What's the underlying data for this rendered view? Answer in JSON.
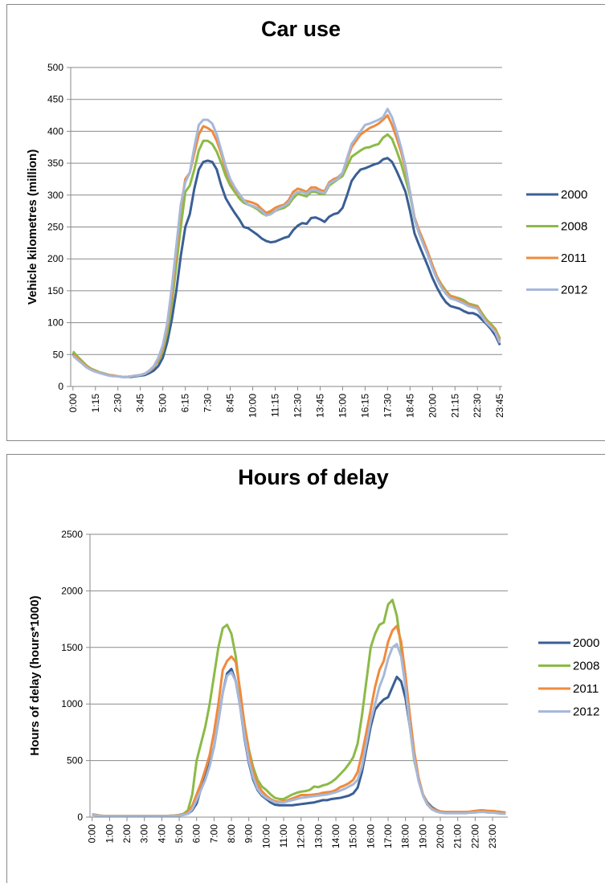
{
  "chart_data": [
    {
      "type": "line",
      "title": "Car use",
      "y_label": "Vehicle kilometres (million)",
      "categories": [
        "0:00",
        null,
        null,
        null,
        null,
        "1:15",
        null,
        null,
        null,
        null,
        "2:30",
        null,
        null,
        null,
        null,
        "3:45",
        null,
        null,
        null,
        null,
        "5:00",
        null,
        null,
        null,
        null,
        "6:15",
        null,
        null,
        null,
        null,
        "7:30",
        null,
        null,
        null,
        null,
        "8:45",
        null,
        null,
        null,
        null,
        "10:00",
        null,
        null,
        null,
        null,
        "11:15",
        null,
        null,
        null,
        null,
        "12:30",
        null,
        null,
        null,
        null,
        "13:45",
        null,
        null,
        null,
        null,
        "15:00",
        null,
        null,
        null,
        null,
        "16:15",
        null,
        null,
        null,
        null,
        "17:30",
        null,
        null,
        null,
        null,
        "18:45",
        null,
        null,
        null,
        null,
        "20:00",
        null,
        null,
        null,
        null,
        "21:15",
        null,
        null,
        null,
        null,
        "22:30",
        null,
        null,
        null,
        null,
        "23:45"
      ],
      "series": [
        {
          "name": "2000",
          "color": "#3a5f94",
          "values": [
            52,
            45,
            38,
            32,
            27,
            24,
            22,
            20,
            18,
            17,
            16,
            15,
            15,
            15,
            16,
            17,
            18,
            21,
            25,
            32,
            45,
            70,
            105,
            150,
            205,
            250,
            270,
            310,
            340,
            352,
            354,
            352,
            340,
            315,
            295,
            283,
            272,
            262,
            250,
            248,
            243,
            238,
            232,
            228,
            226,
            227,
            230,
            233,
            235,
            245,
            252,
            256,
            255,
            264,
            265,
            262,
            258,
            266,
            270,
            272,
            280,
            300,
            322,
            332,
            340,
            342,
            345,
            348,
            350,
            356,
            358,
            352,
            338,
            322,
            305,
            275,
            240,
            222,
            205,
            188,
            170,
            155,
            142,
            132,
            126,
            124,
            122,
            118,
            115,
            115,
            112,
            105,
            98,
            90,
            80,
            65
          ]
        },
        {
          "name": "2008",
          "color": "#8cba47",
          "values": [
            55,
            47,
            40,
            33,
            28,
            25,
            22,
            20,
            18,
            17,
            16,
            15,
            15,
            16,
            17,
            18,
            20,
            24,
            30,
            40,
            55,
            85,
            130,
            190,
            250,
            305,
            315,
            340,
            370,
            385,
            385,
            380,
            368,
            350,
            330,
            315,
            305,
            295,
            288,
            285,
            282,
            278,
            272,
            268,
            272,
            275,
            278,
            280,
            285,
            295,
            302,
            300,
            298,
            305,
            305,
            302,
            302,
            315,
            320,
            325,
            330,
            345,
            360,
            365,
            370,
            374,
            375,
            378,
            380,
            390,
            395,
            388,
            370,
            350,
            325,
            300,
            262,
            240,
            225,
            208,
            190,
            172,
            160,
            150,
            142,
            140,
            138,
            135,
            130,
            128,
            126,
            115,
            105,
            98,
            90,
            75
          ]
        },
        {
          "name": "2011",
          "color": "#f08a3c",
          "values": [
            50,
            44,
            38,
            32,
            27,
            24,
            21,
            19,
            18,
            17,
            16,
            15,
            15,
            16,
            17,
            18,
            20,
            24,
            30,
            42,
            60,
            95,
            145,
            210,
            280,
            325,
            335,
            365,
            395,
            408,
            405,
            400,
            385,
            365,
            340,
            322,
            310,
            300,
            292,
            290,
            288,
            285,
            278,
            272,
            275,
            280,
            283,
            285,
            292,
            305,
            310,
            308,
            305,
            312,
            312,
            308,
            306,
            320,
            325,
            328,
            335,
            355,
            375,
            385,
            395,
            400,
            405,
            408,
            412,
            418,
            425,
            410,
            390,
            368,
            340,
            305,
            265,
            245,
            228,
            210,
            190,
            172,
            158,
            148,
            142,
            140,
            135,
            132,
            128,
            126,
            125,
            112,
            102,
            95,
            88,
            72
          ]
        },
        {
          "name": "2012",
          "color": "#a6b8d9",
          "values": [
            48,
            42,
            36,
            30,
            26,
            23,
            21,
            19,
            17,
            16,
            16,
            15,
            15,
            16,
            17,
            18,
            20,
            25,
            32,
            45,
            65,
            100,
            155,
            220,
            285,
            320,
            335,
            375,
            410,
            418,
            418,
            412,
            395,
            370,
            345,
            325,
            312,
            302,
            292,
            285,
            283,
            280,
            275,
            268,
            270,
            275,
            280,
            283,
            288,
            300,
            305,
            305,
            302,
            308,
            308,
            305,
            303,
            318,
            322,
            326,
            335,
            358,
            380,
            390,
            400,
            410,
            412,
            415,
            418,
            422,
            435,
            422,
            400,
            375,
            345,
            305,
            262,
            240,
            222,
            205,
            185,
            168,
            155,
            145,
            138,
            136,
            133,
            130,
            126,
            124,
            122,
            110,
            100,
            93,
            85,
            68
          ]
        }
      ],
      "ylim": [
        0,
        500
      ],
      "yticks": [
        0,
        50,
        100,
        150,
        200,
        250,
        300,
        350,
        400,
        450,
        500
      ],
      "grid": true,
      "legend": "right"
    },
    {
      "type": "line",
      "title": "Hours of delay",
      "y_label": "Hours of delay (hours*1000)",
      "categories": [
        "0:00",
        null,
        null,
        null,
        "1:00",
        null,
        null,
        null,
        "2:00",
        null,
        null,
        null,
        "3:00",
        null,
        null,
        null,
        "4:00",
        null,
        null,
        null,
        "5:00",
        null,
        null,
        null,
        "6:00",
        null,
        null,
        null,
        "7:00",
        null,
        null,
        null,
        "8:00",
        null,
        null,
        null,
        "9:00",
        null,
        null,
        null,
        "10:00",
        null,
        null,
        null,
        "11:00",
        null,
        null,
        null,
        "12:00",
        null,
        null,
        null,
        "13:00",
        null,
        null,
        null,
        "14:00",
        null,
        null,
        null,
        "15:00",
        null,
        null,
        null,
        "16:00",
        null,
        null,
        null,
        "17:00",
        null,
        null,
        null,
        "18:00",
        null,
        null,
        null,
        "19:00",
        null,
        null,
        null,
        "20:00",
        null,
        null,
        null,
        "21:00",
        null,
        null,
        null,
        "22:00",
        null,
        null,
        null,
        "23:00",
        null,
        null,
        null
      ],
      "series": [
        {
          "name": "2000",
          "color": "#3a5f94",
          "values": [
            20,
            15,
            10,
            8,
            8,
            8,
            8,
            8,
            8,
            8,
            8,
            8,
            8,
            8,
            8,
            8,
            8,
            8,
            10,
            12,
            15,
            20,
            30,
            60,
            120,
            250,
            350,
            480,
            620,
            850,
            1100,
            1270,
            1310,
            1200,
            980,
            700,
            480,
            330,
            240,
            190,
            160,
            130,
            110,
            105,
            105,
            105,
            105,
            110,
            115,
            120,
            125,
            130,
            140,
            150,
            150,
            160,
            165,
            170,
            180,
            190,
            210,
            260,
            400,
            600,
            800,
            950,
            1000,
            1040,
            1060,
            1150,
            1240,
            1200,
            1050,
            800,
            550,
            330,
            200,
            130,
            90,
            65,
            50,
            45,
            40,
            40,
            40,
            40,
            40,
            40,
            45,
            50,
            50,
            50,
            45,
            40,
            35,
            30
          ]
        },
        {
          "name": "2008",
          "color": "#8cba47",
          "values": [
            25,
            20,
            12,
            10,
            10,
            10,
            10,
            10,
            10,
            10,
            10,
            10,
            10,
            10,
            10,
            10,
            10,
            10,
            12,
            15,
            20,
            30,
            60,
            200,
            500,
            650,
            800,
            1000,
            1250,
            1500,
            1670,
            1700,
            1620,
            1420,
            1100,
            820,
            600,
            440,
            330,
            270,
            240,
            200,
            170,
            160,
            160,
            180,
            200,
            215,
            225,
            230,
            240,
            270,
            265,
            280,
            290,
            310,
            340,
            380,
            420,
            470,
            530,
            650,
            900,
            1200,
            1500,
            1620,
            1700,
            1720,
            1880,
            1920,
            1780,
            1500,
            1150,
            800,
            500,
            330,
            200,
            120,
            80,
            60,
            50,
            45,
            45,
            45,
            45,
            45,
            45,
            45,
            50,
            55,
            55,
            55,
            50,
            50,
            45,
            40
          ]
        },
        {
          "name": "2011",
          "color": "#f08a3c",
          "values": [
            22,
            18,
            12,
            10,
            10,
            10,
            10,
            10,
            10,
            10,
            10,
            10,
            10,
            10,
            10,
            10,
            10,
            10,
            12,
            14,
            18,
            25,
            40,
            100,
            200,
            300,
            420,
            550,
            750,
            1000,
            1300,
            1380,
            1420,
            1370,
            1120,
            820,
            580,
            400,
            290,
            230,
            190,
            160,
            140,
            135,
            140,
            150,
            165,
            180,
            195,
            195,
            195,
            200,
            205,
            215,
            220,
            225,
            240,
            265,
            280,
            300,
            330,
            400,
            560,
            750,
            950,
            1150,
            1300,
            1380,
            1550,
            1650,
            1690,
            1550,
            1250,
            900,
            580,
            350,
            200,
            120,
            80,
            60,
            50,
            45,
            45,
            45,
            45,
            45,
            45,
            50,
            55,
            60,
            60,
            55,
            55,
            50,
            45,
            40
          ]
        },
        {
          "name": "2012",
          "color": "#a6b8d9",
          "values": [
            18,
            15,
            10,
            8,
            8,
            8,
            8,
            8,
            8,
            8,
            8,
            8,
            8,
            8,
            8,
            8,
            8,
            8,
            10,
            12,
            14,
            20,
            30,
            70,
            150,
            240,
            330,
            450,
            620,
            850,
            1100,
            1250,
            1280,
            1200,
            980,
            720,
            500,
            350,
            250,
            200,
            170,
            150,
            130,
            130,
            130,
            140,
            150,
            160,
            170,
            175,
            180,
            185,
            190,
            195,
            200,
            210,
            220,
            235,
            250,
            270,
            290,
            330,
            450,
            650,
            850,
            1000,
            1150,
            1250,
            1400,
            1500,
            1530,
            1420,
            1150,
            800,
            520,
            320,
            190,
            110,
            70,
            50,
            40,
            35,
            35,
            35,
            35,
            35,
            35,
            40,
            40,
            45,
            45,
            40,
            40,
            35,
            30,
            30
          ]
        }
      ],
      "ylim": [
        0,
        2500
      ],
      "yticks": [
        0,
        500,
        1000,
        1500,
        2000,
        2500
      ],
      "grid": true,
      "legend": "right"
    }
  ]
}
